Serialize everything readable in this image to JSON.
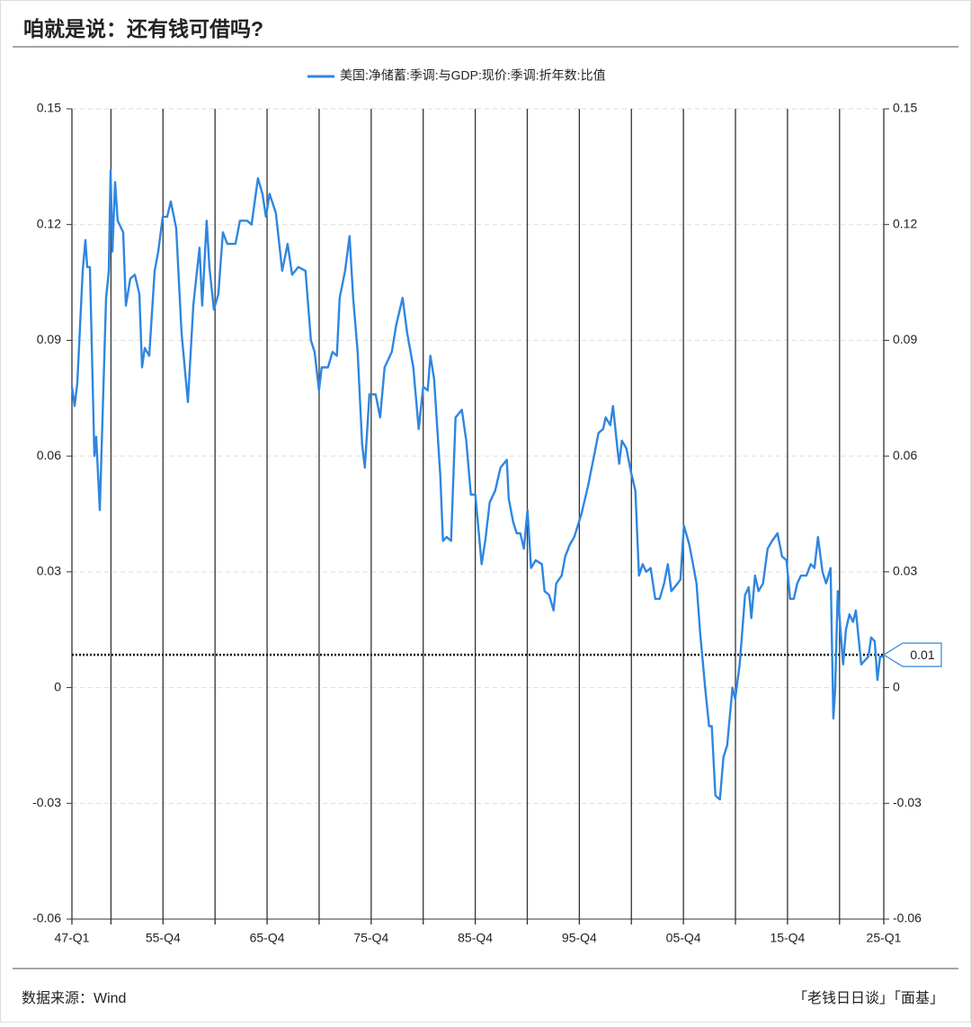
{
  "chart_data": {
    "type": "line",
    "title": "咱就是说：还有钱可借吗?",
    "source": "数据来源：Wind",
    "credit": "「老钱日日谈」「面基」",
    "x": [
      1947.0,
      1947.26,
      1947.52,
      1948.04,
      1948.3,
      1948.47,
      1948.73,
      1949.16,
      1949.33,
      1949.68,
      1950.28,
      1950.54,
      1950.71,
      1950.89,
      1951.15,
      1951.4,
      1951.92,
      1952.18,
      1952.61,
      1953.05,
      1953.48,
      1953.74,
      1954.0,
      1954.43,
      1954.95,
      1955.29,
      1955.72,
      1956.15,
      1956.5,
      1957.02,
      1957.53,
      1958.14,
      1958.66,
      1959.26,
      1959.52,
      1959.95,
      1960.21,
      1960.64,
      1961.07,
      1961.5,
      1961.93,
      1962.71,
      1963.14,
      1963.83,
      1964.26,
      1964.87,
      1965.3,
      1965.64,
      1965.99,
      1966.59,
      1967.2,
      1967.72,
      1968.15,
      1968.75,
      1969.44,
      1969.96,
      1970.31,
      1970.74,
      1971.0,
      1971.6,
      1972.03,
      1972.46,
      1972.72,
      1973.24,
      1973.67,
      1974.02,
      1974.45,
      1974.88,
      1975.14,
      1975.58,
      1976.18,
      1976.61,
      1977.04,
      1977.73,
      1978.16,
      1978.77,
      1979.2,
      1979.8,
      1980.32,
      1980.75,
      1981.18,
      1981.44,
      1981.79,
      1982.13,
      1982.39,
      1982.65,
      1983.0,
      1983.43,
      1983.86,
      1984.46,
      1984.89,
      1985.33,
      1985.76,
      1986.36,
      1986.71,
      1987.14,
      1987.66,
      1988.18,
      1988.78,
      1988.96,
      1989.39,
      1989.73,
      1990.08,
      1990.42,
      1990.77,
      1991.11,
      1991.55,
      1992.15,
      1992.41,
      1992.84,
      1993.27,
      1993.53,
      1994.05,
      1994.4,
      1994.83,
      1995.26,
      1995.95,
      1996.56,
      1997.16,
      1997.59,
      1998.03,
      1998.28,
      1998.72,
      1998.98,
      1999.41,
      1999.58,
      1999.84,
      2000.27,
      2000.7,
      2001.13,
      2001.48,
      2001.83,
      2002.17,
      2002.6,
      2003.04,
      2003.47,
      2003.9,
      2004.25,
      2004.59,
      2005.2,
      2005.46,
      2005.8,
      2006.32,
      2006.67,
      2007.01,
      2007.36,
      2007.87,
      2008.22,
      2008.48,
      2008.82,
      2009.25,
      2009.6,
      2009.95,
      2010.46,
      2010.72,
      2011.15,
      2011.67,
      2012.02,
      2012.28,
      2012.63,
      2012.97,
      2013.4,
      2013.84,
      2014.27,
      2014.79,
      2015.22,
      2015.65,
      2016.0,
      2016.35,
      2016.69,
      2017.04,
      2017.56,
      2017.99,
      2018.34,
      2018.68,
      2019.11,
      2019.46,
      2019.89,
      2020.15,
      2020.32,
      2020.58,
      2020.84,
      2021.1,
      2021.36,
      2021.7,
      2022.05,
      2022.31,
      2022.57,
      2022.83,
      2023.17,
      2023.52,
      2023.78,
      2024.13,
      2024.39,
      2024.65,
      2025.0
    ],
    "series": [
      {
        "name": "美国:净储蓄:季调:与GDP:现价:季调:折年数:比值",
        "color": "#2f86e0",
        "values": [
          0.078,
          0.073,
          0.079,
          0.108,
          0.116,
          0.109,
          0.109,
          0.06,
          0.065,
          0.046,
          0.101,
          0.108,
          0.134,
          0.113,
          0.131,
          0.121,
          0.118,
          0.099,
          0.106,
          0.107,
          0.102,
          0.083,
          0.088,
          0.086,
          0.108,
          0.113,
          0.122,
          0.122,
          0.126,
          0.119,
          0.092,
          0.074,
          0.099,
          0.114,
          0.099,
          0.121,
          0.109,
          0.098,
          0.102,
          0.118,
          0.115,
          0.115,
          0.121,
          0.121,
          0.12,
          0.132,
          0.128,
          0.122,
          0.128,
          0.123,
          0.108,
          0.115,
          0.107,
          0.109,
          0.108,
          0.09,
          0.087,
          0.077,
          0.083,
          0.083,
          0.087,
          0.086,
          0.101,
          0.108,
          0.117,
          0.101,
          0.087,
          0.063,
          0.057,
          0.076,
          0.076,
          0.07,
          0.083,
          0.087,
          0.094,
          0.101,
          0.092,
          0.083,
          0.067,
          0.078,
          0.077,
          0.086,
          0.08,
          0.066,
          0.055,
          0.038,
          0.039,
          0.038,
          0.07,
          0.072,
          0.064,
          0.05,
          0.05,
          0.032,
          0.038,
          0.048,
          0.051,
          0.057,
          0.059,
          0.049,
          0.043,
          0.04,
          0.04,
          0.036,
          0.046,
          0.031,
          0.033,
          0.032,
          0.025,
          0.024,
          0.02,
          0.027,
          0.029,
          0.034,
          0.037,
          0.039,
          0.045,
          0.052,
          0.06,
          0.066,
          0.067,
          0.07,
          0.068,
          0.073,
          0.062,
          0.058,
          0.064,
          0.062,
          0.056,
          0.051,
          0.029,
          0.032,
          0.03,
          0.031,
          0.023,
          0.023,
          0.027,
          0.032,
          0.025,
          0.027,
          0.028,
          0.042,
          0.037,
          0.032,
          0.027,
          0.014,
          -0.001,
          -0.01,
          -0.01,
          -0.028,
          -0.029,
          -0.018,
          -0.015,
          0.0,
          -0.003,
          0.006,
          0.024,
          0.026,
          0.018,
          0.029,
          0.025,
          0.027,
          0.036,
          0.038,
          0.04,
          0.034,
          0.033,
          0.023,
          0.023,
          0.027,
          0.029,
          0.029,
          0.032,
          0.031,
          0.039,
          0.03,
          0.027,
          0.031,
          -0.008,
          -0.001,
          0.025,
          0.015,
          0.006,
          0.015,
          0.019,
          0.017,
          0.02,
          0.013,
          0.006,
          0.007,
          0.008,
          0.013,
          0.012,
          0.002,
          0.008,
          0.008
        ]
      }
    ],
    "xlim": [
      1947,
      2025
    ],
    "xticks": [
      {
        "value": 1947,
        "label": "47-Q1"
      },
      {
        "value": 1950.75,
        "label": null
      },
      {
        "value": 1955.75,
        "label": "55-Q4"
      },
      {
        "value": 1960.75,
        "label": null
      },
      {
        "value": 1965.75,
        "label": "65-Q4"
      },
      {
        "value": 1970.75,
        "label": null
      },
      {
        "value": 1975.75,
        "label": "75-Q4"
      },
      {
        "value": 1980.75,
        "label": null
      },
      {
        "value": 1985.75,
        "label": "85-Q4"
      },
      {
        "value": 1990.75,
        "label": null
      },
      {
        "value": 1995.75,
        "label": "95-Q4"
      },
      {
        "value": 2000.75,
        "label": null
      },
      {
        "value": 2005.75,
        "label": "05-Q4"
      },
      {
        "value": 2010.75,
        "label": null
      },
      {
        "value": 2015.75,
        "label": "15-Q4"
      },
      {
        "value": 2020.75,
        "label": null
      },
      {
        "value": 2025,
        "label": "25-Q1"
      }
    ],
    "ylim": [
      -0.06,
      0.15
    ],
    "yticks": [
      0.15,
      0.12,
      0.09,
      0.06,
      0.03,
      0,
      -0.03,
      -0.06
    ],
    "y2lim": [
      -0.06,
      0.15
    ],
    "y2ticks": [
      0.15,
      0.12,
      0.09,
      0.06,
      0.03,
      0,
      -0.03,
      -0.06
    ],
    "grid": true,
    "reference_line": {
      "value": 0.0085,
      "label": "0.01"
    }
  }
}
